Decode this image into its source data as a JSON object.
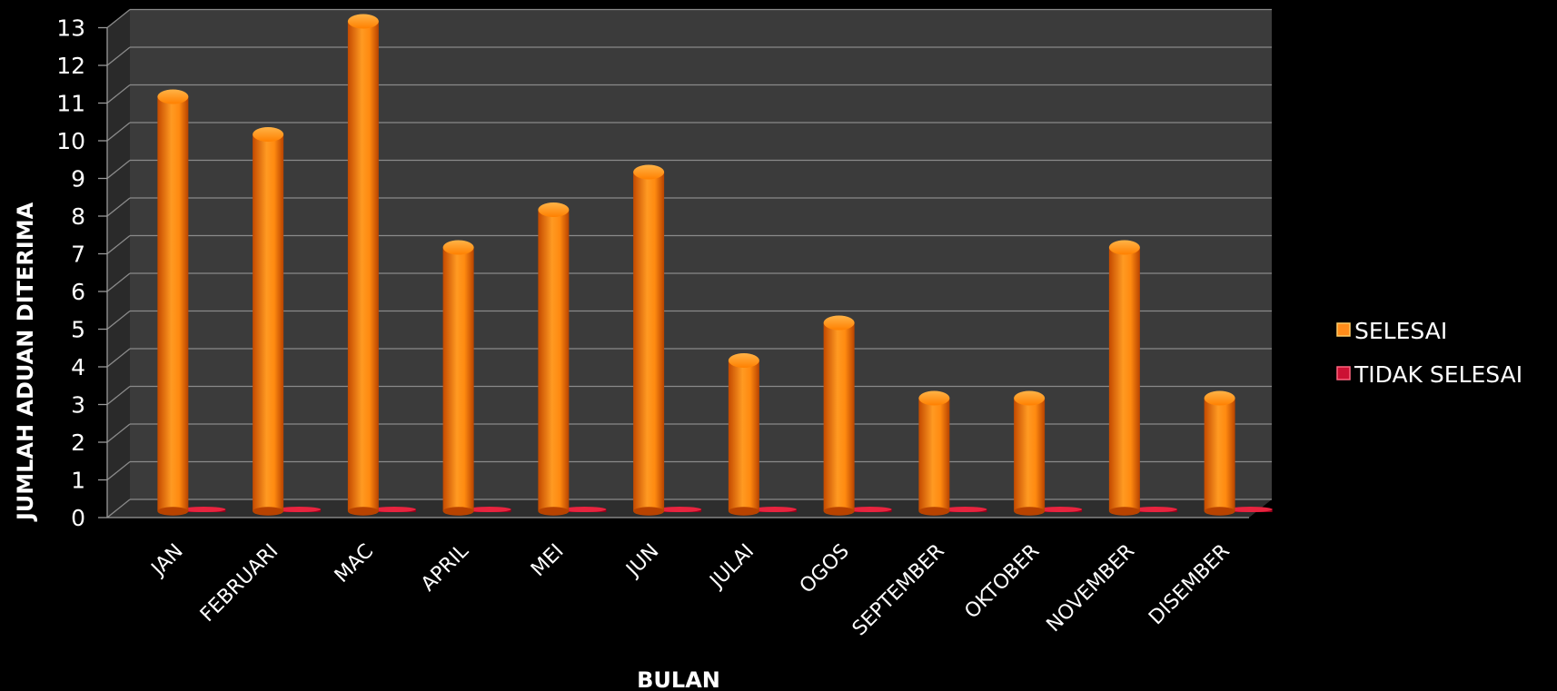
{
  "chart_data": {
    "type": "bar",
    "title": "",
    "xlabel": "BULAN",
    "ylabel": "JUMLAH ADUAN DITERIMA",
    "ylim": [
      0,
      13
    ],
    "yticks": [
      "0",
      "1",
      "2",
      "3",
      "4",
      "5",
      "6",
      "7",
      "8",
      "9",
      "10",
      "11",
      "12",
      "13"
    ],
    "categories": [
      "JAN",
      "FEBRUARI",
      "MAC",
      "APRIL",
      "MEI",
      "JUN",
      "JULAI",
      "OGOS",
      "SEPTEMBER",
      "OKTOBER",
      "NOVEMBER",
      "DISEMBER"
    ],
    "series": [
      {
        "name": "SELESAI",
        "values": [
          11,
          10,
          13,
          7,
          8,
          9,
          4,
          5,
          3,
          3,
          7,
          3
        ],
        "color": "#ff8c1a"
      },
      {
        "name": "TIDAK SELESAI",
        "values": [
          0,
          0,
          0,
          0,
          0,
          0,
          0,
          0,
          0,
          0,
          0,
          0
        ],
        "color": "#cc1133"
      }
    ],
    "grid": true,
    "legend": "right",
    "background": "#3b3b3b"
  }
}
